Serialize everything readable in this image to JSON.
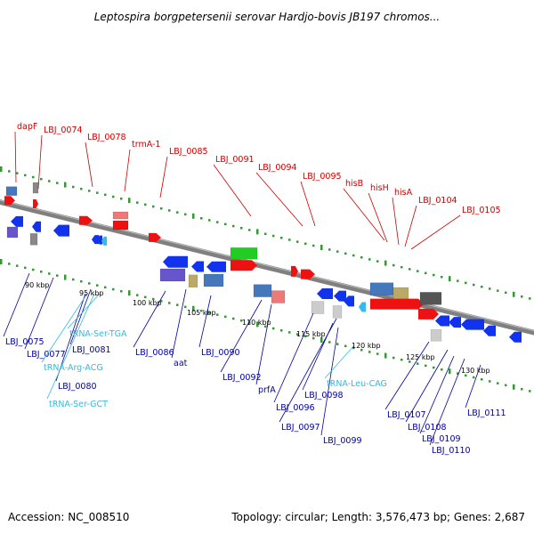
{
  "title": "Leptospira borgpetersenii serovar Hardjo-bovis JB197 chromos...",
  "footer": {
    "accession": "Accession: NC_008510",
    "topology": "Topology: circular; Length: 3,576,473 bp; Genes: 2,687"
  },
  "colors": {
    "label_forward": "#cc0000",
    "label_reverse": "#000099",
    "label_rna": "#33bbdd",
    "dots": "#339933",
    "backbone": "#808080",
    "gene_red": "#ee1111",
    "gene_blue": "#1133ee",
    "gene_purple": "#6655cc",
    "gene_steel": "#4477bb",
    "gene_pink": "#ee7777",
    "gene_green": "#22cc22",
    "gene_olive": "#bbaa66",
    "gene_gray": "#888888",
    "gene_dark": "#555555",
    "gene_light": "#cccccc",
    "gene_cyan": "#33bbee"
  },
  "ticks": [
    "90 kbp",
    "95 kbp",
    "100 kbp",
    "105 kbp",
    "110 kbp",
    "115 kbp",
    "120 kbp",
    "125 kbp",
    "130 kbp"
  ],
  "top_labels": [
    "dapF",
    "LBJ_0074",
    "LBJ_0078",
    "trmA-1",
    "LBJ_0085",
    "LBJ_0091",
    "LBJ_0094",
    "LBJ_0095",
    "hisB",
    "hisH",
    "hisA",
    "LBJ_0104",
    "LBJ_0105"
  ],
  "bottom_labels": [
    "LBJ_0075",
    "LBJ_0077",
    "LBJ_0081",
    "LBJ_0080",
    "LBJ_0086",
    "aat",
    "LBJ_0090",
    "LBJ_0092",
    "prfA",
    "LBJ_0096",
    "LBJ_0097",
    "LBJ_0098",
    "LBJ_0099",
    "LBJ_0107",
    "LBJ_0108",
    "LBJ_0109",
    "LBJ_0110",
    "LBJ_0111"
  ],
  "rna_labels": [
    "tRNA-Ser-TGA",
    "tRNA-Arg-ACG",
    "tRNA-Ser-GCT",
    "tRNA-Leu-CAG"
  ]
}
